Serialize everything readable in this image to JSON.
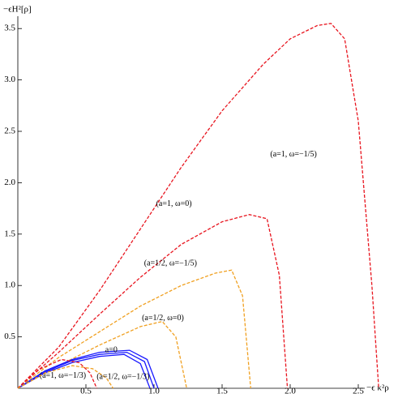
{
  "chart_data": {
    "type": "line",
    "x_label": "−ϵ κ²ρ",
    "y_label": "−ϵH²[ρ]",
    "xlim": [
      0,
      2.78
    ],
    "ylim": [
      0,
      3.62
    ],
    "xticks": [
      0.5,
      {
        "value": 1.0,
        "label": "1.0"
      },
      1.5,
      {
        "value": 2.0,
        "label": "2.0"
      },
      2.5
    ],
    "yticks": [
      0.5,
      {
        "value": 1.0,
        "label": "1.0"
      },
      1.5,
      {
        "value": 2.0,
        "label": "2.0"
      },
      2.5,
      {
        "value": 3.0,
        "label": "3.0"
      },
      3.5
    ],
    "series": [
      {
        "name": "(a=1, ω=−1/5)",
        "color": "#e8141e",
        "dashed": true,
        "x": [
          0,
          0.3,
          0.6,
          0.9,
          1.2,
          1.5,
          1.8,
          2.0,
          2.2,
          2.3,
          2.4,
          2.5,
          2.6,
          2.65
        ],
        "y": [
          0,
          0.4,
          0.95,
          1.55,
          2.15,
          2.7,
          3.15,
          3.4,
          3.53,
          3.55,
          3.4,
          2.6,
          1.0,
          0
        ]
      },
      {
        "name": "(a=1, ω=0)",
        "color": "#e8141e",
        "dashed": true,
        "x": [
          0,
          0.3,
          0.6,
          0.9,
          1.2,
          1.5,
          1.7,
          1.83,
          1.92,
          1.98
        ],
        "y": [
          0,
          0.35,
          0.72,
          1.08,
          1.4,
          1.62,
          1.69,
          1.65,
          1.1,
          0
        ]
      },
      {
        "name": "(a=1/2, ω=−1/5)",
        "color": "#f0a020",
        "dashed": true,
        "x": [
          0,
          0.3,
          0.6,
          0.9,
          1.2,
          1.45,
          1.57,
          1.65,
          1.71
        ],
        "y": [
          0,
          0.3,
          0.55,
          0.8,
          1.0,
          1.12,
          1.15,
          0.9,
          0
        ]
      },
      {
        "name": "(a=1/2, ω=0)",
        "color": "#f0a020",
        "dashed": true,
        "x": [
          0,
          0.3,
          0.6,
          0.9,
          1.06,
          1.16,
          1.24
        ],
        "y": [
          0,
          0.22,
          0.42,
          0.6,
          0.65,
          0.5,
          0
        ]
      },
      {
        "name": "a=0",
        "color": "#1a1aff",
        "dashed": false,
        "x": [
          0,
          0.2,
          0.4,
          0.6,
          0.82,
          0.95,
          1.03
        ],
        "y": [
          0,
          0.17,
          0.28,
          0.35,
          0.37,
          0.28,
          0
        ]
      },
      {
        "color": "#1a1aff",
        "dashed": false,
        "x": [
          0,
          0.2,
          0.4,
          0.6,
          0.8,
          0.93,
          1.0
        ],
        "y": [
          0,
          0.16,
          0.27,
          0.33,
          0.35,
          0.26,
          0
        ]
      },
      {
        "color": "#1a1aff",
        "dashed": false,
        "x": [
          0,
          0.2,
          0.4,
          0.6,
          0.78,
          0.9,
          0.97
        ],
        "y": [
          0,
          0.15,
          0.25,
          0.31,
          0.33,
          0.24,
          0
        ]
      },
      {
        "name": "(a=1, ω=−1/3)",
        "color": "#e8141e",
        "dashed": true,
        "x": [
          0,
          0.15,
          0.32,
          0.45,
          0.53,
          0.58
        ],
        "y": [
          0,
          0.18,
          0.28,
          0.25,
          0.15,
          0
        ]
      },
      {
        "name": "(a=1/2, ω=−1/3)",
        "color": "#f0a020",
        "dashed": true,
        "x": [
          0,
          0.2,
          0.4,
          0.55,
          0.65,
          0.7
        ],
        "y": [
          0,
          0.15,
          0.22,
          0.19,
          0.1,
          0
        ]
      }
    ]
  }
}
